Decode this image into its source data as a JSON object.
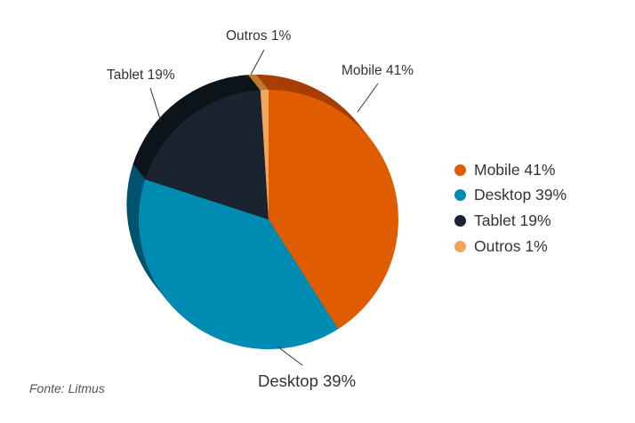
{
  "chart_data": {
    "type": "pie",
    "style": "3d",
    "categories": [
      "Mobile",
      "Desktop",
      "Tablet",
      "Outros"
    ],
    "values": [
      41,
      39,
      19,
      1
    ],
    "colors": [
      "#e05c00",
      "#008bb2",
      "#1a2430",
      "#f2a55a"
    ],
    "side_colors": [
      "#a83e00",
      "#00536e",
      "#0d141b",
      "#c07830"
    ],
    "labels": [
      "Mobile 41%",
      "Desktop 39%",
      "Tablet 19%",
      "Outros 1%"
    ],
    "legend": {
      "position": "right",
      "entries": [
        "Mobile 41%",
        "Desktop 39%",
        "Tablet 19%",
        "Outros 1%"
      ]
    }
  },
  "source": "Fonte: Litmus"
}
